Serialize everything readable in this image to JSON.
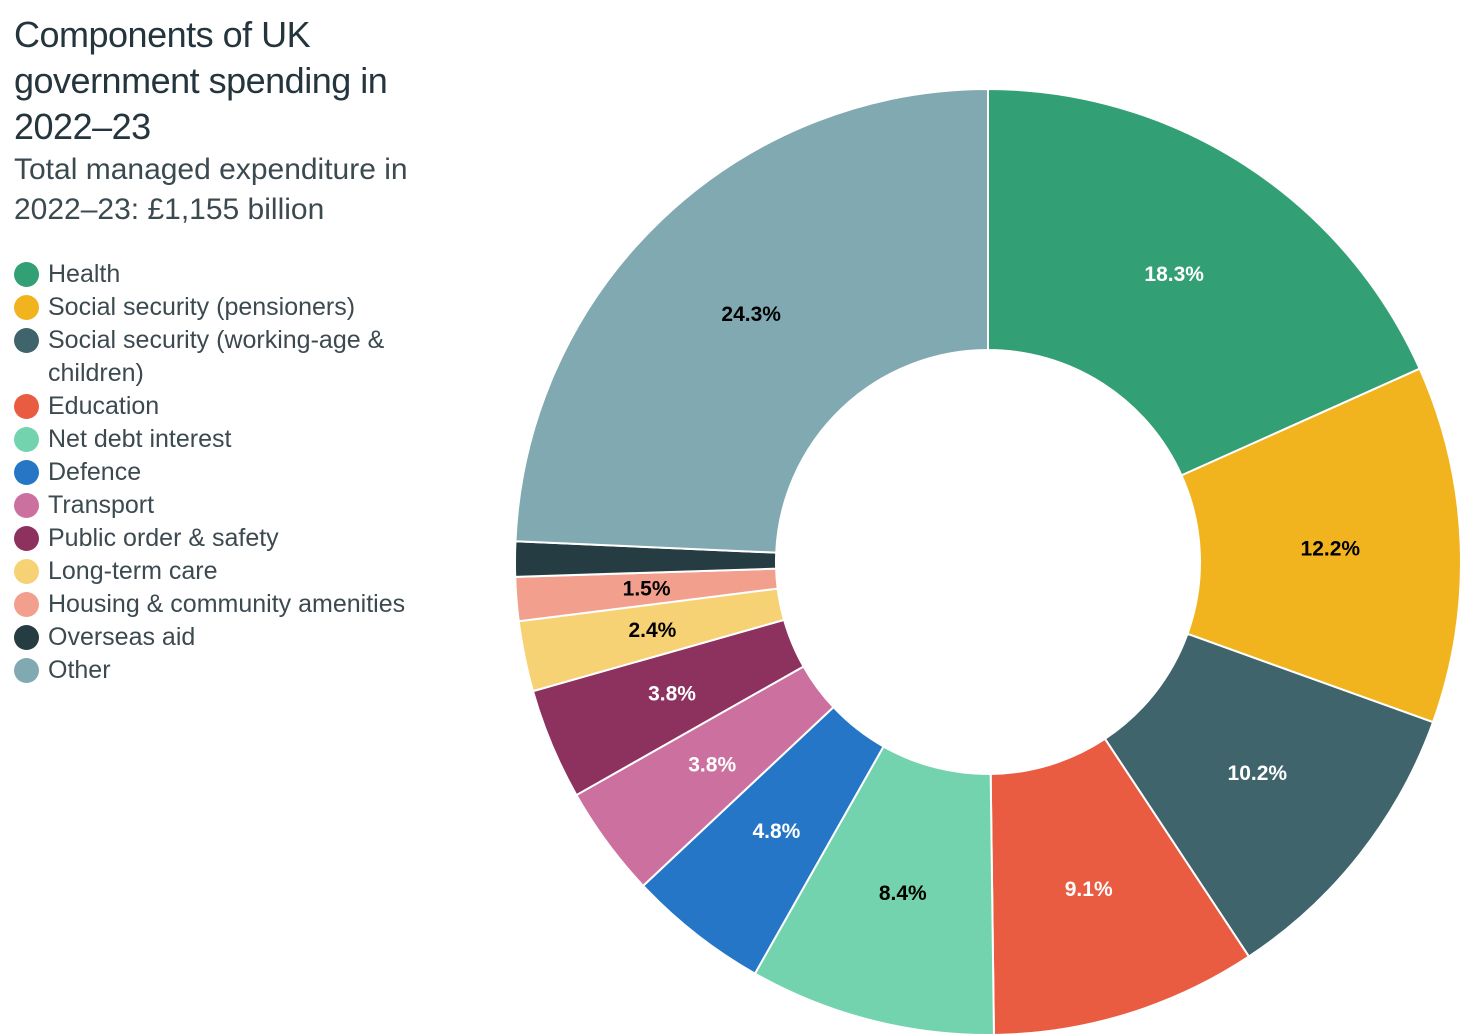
{
  "chart_data": {
    "type": "pie",
    "variant": "donut",
    "title": "Components of UK government spending in 2022–23",
    "subtitle": "Total managed expenditure in 2022–23: £1,155 billion",
    "legend_position": "left",
    "slices": [
      {
        "name": "Health",
        "value": 18.3,
        "label": "18.3%",
        "color": "#329f75",
        "label_color": "#ffffff"
      },
      {
        "name": "Social security (pensioners)",
        "value": 12.2,
        "label": "12.2%",
        "color": "#f1b41e",
        "label_color": "#000000"
      },
      {
        "name": "Social security (working-age & children)",
        "value": 10.2,
        "label": "10.2%",
        "color": "#3f646c",
        "label_color": "#ffffff"
      },
      {
        "name": "Education",
        "value": 9.1,
        "label": "9.1%",
        "color": "#ea5c42",
        "label_color": "#ffffff"
      },
      {
        "name": "Net debt interest",
        "value": 8.4,
        "label": "8.4%",
        "color": "#72d3ae",
        "label_color": "#000000"
      },
      {
        "name": "Defence",
        "value": 4.8,
        "label": "4.8%",
        "color": "#2676c7",
        "label_color": "#ffffff"
      },
      {
        "name": "Transport",
        "value": 3.8,
        "label": "3.8%",
        "color": "#cc719f",
        "label_color": "#ffffff"
      },
      {
        "name": "Public order & safety",
        "value": 3.8,
        "label": "3.8%",
        "color": "#8d325f",
        "label_color": "#ffffff"
      },
      {
        "name": "Long-term care",
        "value": 2.4,
        "label": "2.4%",
        "color": "#f6d274",
        "label_color": "#000000"
      },
      {
        "name": "Housing & community amenities",
        "value": 1.5,
        "label": "1.5%",
        "color": "#f29f8d",
        "label_color": "#000000"
      },
      {
        "name": "Overseas aid",
        "value": 1.2,
        "label": "",
        "color": "#253c42",
        "label_color": "#ffffff"
      },
      {
        "name": "Other",
        "value": 24.3,
        "label": "24.3%",
        "color": "#81a9b1",
        "label_color": "#000000"
      }
    ]
  }
}
